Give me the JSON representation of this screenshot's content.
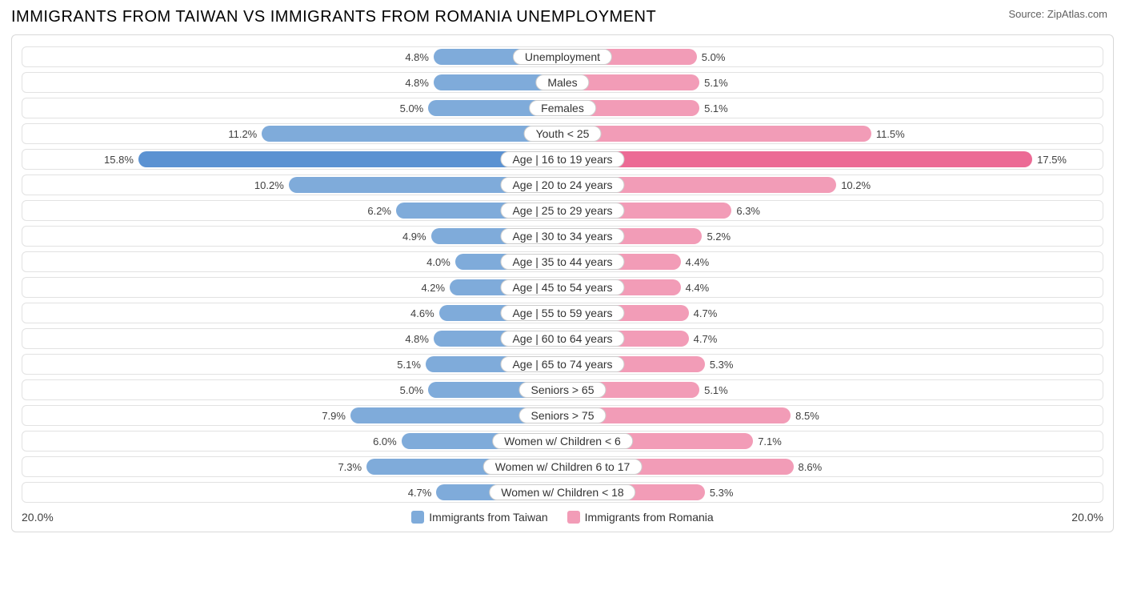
{
  "header": {
    "title": "IMMIGRANTS FROM TAIWAN VS IMMIGRANTS FROM ROMANIA UNEMPLOYMENT",
    "source": "Source: ZipAtlas.com"
  },
  "chart": {
    "type": "diverging-bar",
    "axis_max": 20.0,
    "axis_label_left": "20.0%",
    "axis_label_right": "20.0%",
    "left_series": {
      "name": "Immigrants from Taiwan",
      "bar_color": "#7fabda",
      "highlight_color": "#5b92d2"
    },
    "right_series": {
      "name": "Immigrants from Romania",
      "bar_color": "#f29cb7",
      "highlight_color": "#ec6a95"
    },
    "row_border_color": "#e2e2e2",
    "background_color": "#ffffff",
    "label_fontsize": 13,
    "category_fontsize": 14,
    "rows": [
      {
        "category": "Unemployment",
        "left_value": 4.8,
        "left_label": "4.8%",
        "right_value": 5.0,
        "right_label": "5.0%",
        "highlight": false
      },
      {
        "category": "Males",
        "left_value": 4.8,
        "left_label": "4.8%",
        "right_value": 5.1,
        "right_label": "5.1%",
        "highlight": false
      },
      {
        "category": "Females",
        "left_value": 5.0,
        "left_label": "5.0%",
        "right_value": 5.1,
        "right_label": "5.1%",
        "highlight": false
      },
      {
        "category": "Youth < 25",
        "left_value": 11.2,
        "left_label": "11.2%",
        "right_value": 11.5,
        "right_label": "11.5%",
        "highlight": false
      },
      {
        "category": "Age | 16 to 19 years",
        "left_value": 15.8,
        "left_label": "15.8%",
        "right_value": 17.5,
        "right_label": "17.5%",
        "highlight": true
      },
      {
        "category": "Age | 20 to 24 years",
        "left_value": 10.2,
        "left_label": "10.2%",
        "right_value": 10.2,
        "right_label": "10.2%",
        "highlight": false
      },
      {
        "category": "Age | 25 to 29 years",
        "left_value": 6.2,
        "left_label": "6.2%",
        "right_value": 6.3,
        "right_label": "6.3%",
        "highlight": false
      },
      {
        "category": "Age | 30 to 34 years",
        "left_value": 4.9,
        "left_label": "4.9%",
        "right_value": 5.2,
        "right_label": "5.2%",
        "highlight": false
      },
      {
        "category": "Age | 35 to 44 years",
        "left_value": 4.0,
        "left_label": "4.0%",
        "right_value": 4.4,
        "right_label": "4.4%",
        "highlight": false
      },
      {
        "category": "Age | 45 to 54 years",
        "left_value": 4.2,
        "left_label": "4.2%",
        "right_value": 4.4,
        "right_label": "4.4%",
        "highlight": false
      },
      {
        "category": "Age | 55 to 59 years",
        "left_value": 4.6,
        "left_label": "4.6%",
        "right_value": 4.7,
        "right_label": "4.7%",
        "highlight": false
      },
      {
        "category": "Age | 60 to 64 years",
        "left_value": 4.8,
        "left_label": "4.8%",
        "right_value": 4.7,
        "right_label": "4.7%",
        "highlight": false
      },
      {
        "category": "Age | 65 to 74 years",
        "left_value": 5.1,
        "left_label": "5.1%",
        "right_value": 5.3,
        "right_label": "5.3%",
        "highlight": false
      },
      {
        "category": "Seniors > 65",
        "left_value": 5.0,
        "left_label": "5.0%",
        "right_value": 5.1,
        "right_label": "5.1%",
        "highlight": false
      },
      {
        "category": "Seniors > 75",
        "left_value": 7.9,
        "left_label": "7.9%",
        "right_value": 8.5,
        "right_label": "8.5%",
        "highlight": false
      },
      {
        "category": "Women w/ Children < 6",
        "left_value": 6.0,
        "left_label": "6.0%",
        "right_value": 7.1,
        "right_label": "7.1%",
        "highlight": false
      },
      {
        "category": "Women w/ Children 6 to 17",
        "left_value": 7.3,
        "left_label": "7.3%",
        "right_value": 8.6,
        "right_label": "8.6%",
        "highlight": false
      },
      {
        "category": "Women w/ Children < 18",
        "left_value": 4.7,
        "left_label": "4.7%",
        "right_value": 5.3,
        "right_label": "5.3%",
        "highlight": false
      }
    ]
  }
}
